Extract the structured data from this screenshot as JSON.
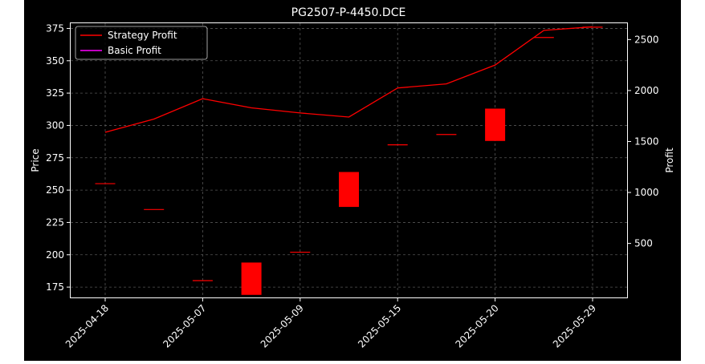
{
  "chart_data": {
    "type": "candlestick+line",
    "title": "PG2507-P-4450.DCE",
    "ylabel": "Price",
    "y2label": "Profit",
    "grid": true,
    "legend_position": "top-left",
    "ylim": [
      167,
      379
    ],
    "y2lim": [
      -30,
      2660
    ],
    "yticks": [
      175,
      200,
      225,
      250,
      275,
      300,
      325,
      350,
      375
    ],
    "y2ticks": [
      500,
      1000,
      1500,
      2000,
      2500
    ],
    "xtick_labels": [
      "2025-04-18",
      "2025-05-07",
      "2025-05-09",
      "2025-05-15",
      "2025-05-20",
      "2025-05-29"
    ],
    "colors": {
      "background": "#000000",
      "text": "#ffffff",
      "grid": "#555555",
      "candle": "#ff0000",
      "strategy": "#ff0000",
      "basic": "#ff00ff"
    },
    "candles": [
      {
        "open": 255,
        "close": 255
      },
      {
        "open": 235,
        "close": 235
      },
      {
        "open": 180,
        "close": 180
      },
      {
        "open": 194,
        "close": 169
      },
      {
        "open": 202,
        "close": 202
      },
      {
        "open": 264,
        "close": 237
      },
      {
        "open": 285,
        "close": 285
      },
      {
        "open": 293,
        "close": 293
      },
      {
        "open": 313,
        "close": 288
      },
      {
        "open": 368,
        "close": 368
      },
      {
        "open": 376,
        "close": 376
      }
    ],
    "series": [
      {
        "name": "Strategy Profit",
        "axis": "right",
        "values": [
          1590,
          1720,
          1920,
          1830,
          1780,
          1740,
          2025,
          2065,
          2250,
          2590,
          2625
        ]
      },
      {
        "name": "Basic Profit",
        "axis": "right",
        "values": []
      }
    ]
  }
}
